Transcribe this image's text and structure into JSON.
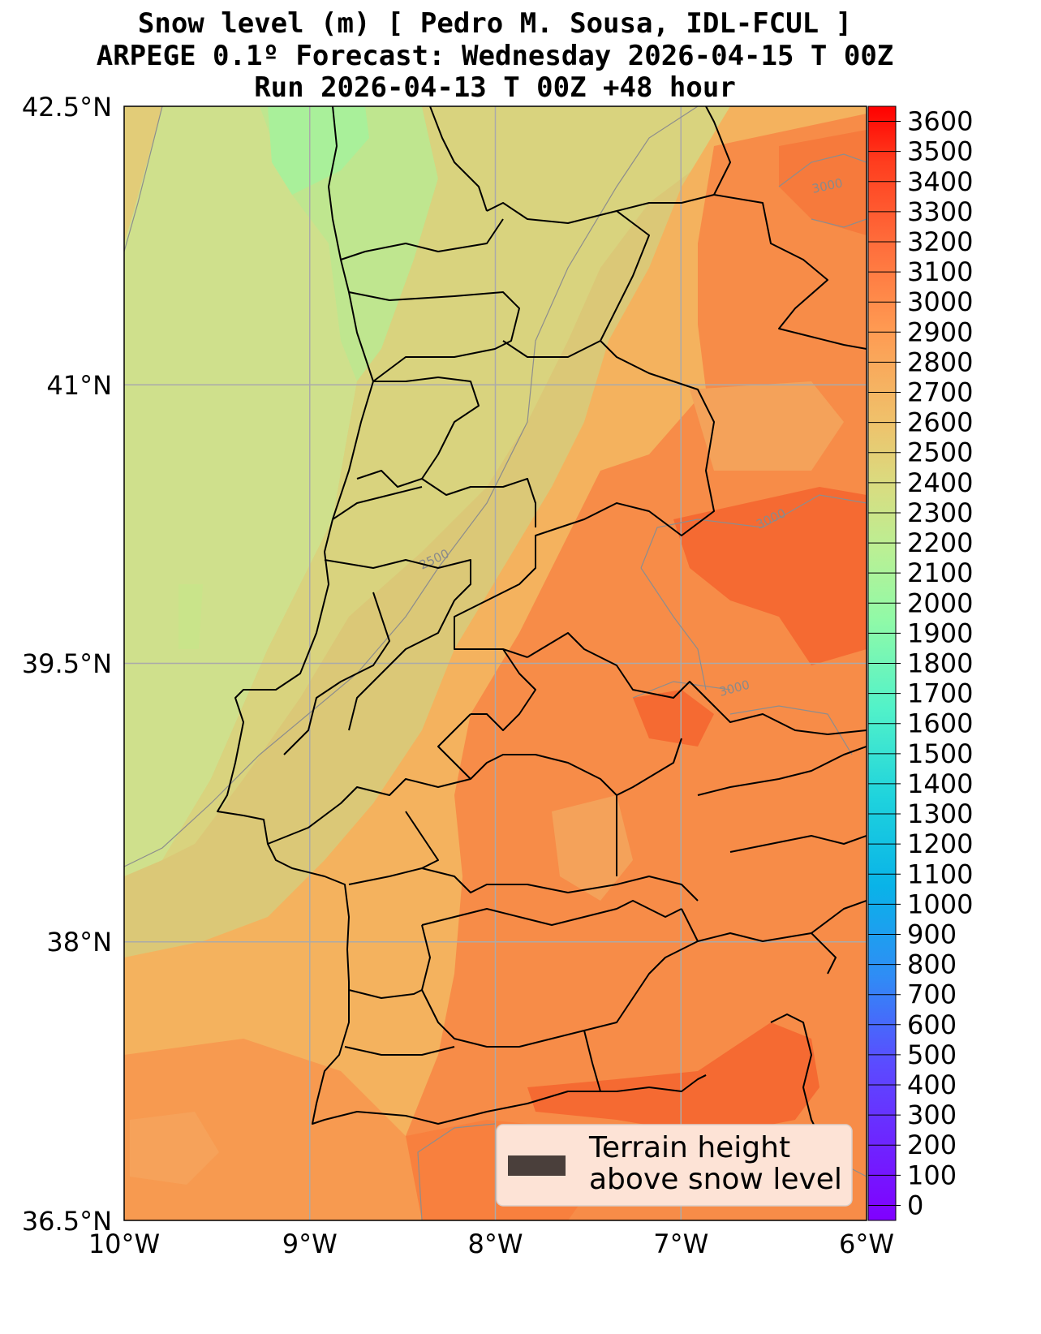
{
  "title": {
    "line1": "Snow level (m) [ Pedro M. Sousa, IDL-FCUL ]",
    "line2": "ARPEGE 0.1º Forecast: Wednesday 2026-04-15 T 00Z",
    "line3": "Run 2026-04-13 T 00Z +48 hour"
  },
  "axes": {
    "lon_ticks": [
      "10°W",
      "9°W",
      "8°W",
      "7°W",
      "6°W"
    ],
    "lat_ticks": [
      "42.5°N",
      "41°N",
      "39.5°N",
      "38°N",
      "36.5°N"
    ]
  },
  "colorbar": {
    "min": 0,
    "max": 3700,
    "step": 100,
    "labels": [
      "3600",
      "3500",
      "3400",
      "3300",
      "3200",
      "3100",
      "3000",
      "2900",
      "2800",
      "2700",
      "2600",
      "2500",
      "2400",
      "2300",
      "2200",
      "2100",
      "2000",
      "1900",
      "1800",
      "1700",
      "1600",
      "1500",
      "1400",
      "1300",
      "1200",
      "1100",
      "1000",
      "900",
      "800",
      "700",
      "600",
      "500",
      "400",
      "300",
      "200",
      "100",
      "0"
    ]
  },
  "legend": {
    "line1": "Terrain height",
    "line2": "above snow level",
    "swatch_color": "#4a3f3b"
  },
  "contour_labels": [
    "3000",
    "3000",
    "2500",
    "3000"
  ],
  "colors": {
    "ocean_west": "#cfe08c",
    "coast_green": "#a9f09a",
    "mid": "#d9d37e",
    "orange_light": "#f4b25e",
    "orange": "#f78c48",
    "orange_dark": "#f56a32"
  }
}
